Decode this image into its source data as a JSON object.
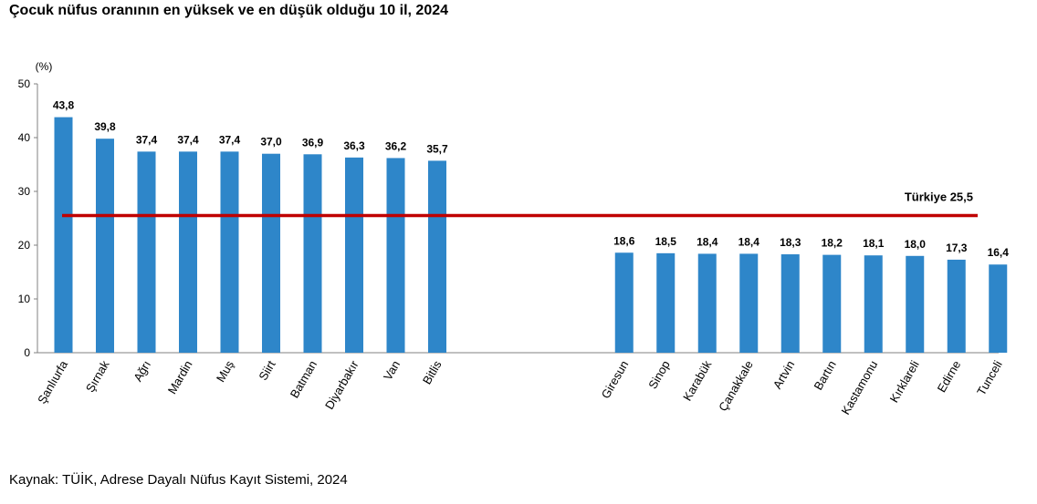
{
  "title": "Çocuk nüfus oranının en yüksek ve en düşük olduğu 10 il, 2024",
  "source": "Kaynak: TÜİK, Adrese Dayalı Nüfus Kayıt Sistemi, 2024",
  "chart_data": {
    "type": "bar",
    "ylabel": "(%)",
    "ylim": [
      0,
      50
    ],
    "yticks": [
      0,
      10,
      20,
      30,
      40,
      50
    ],
    "categories": [
      "Şanlıurfa",
      "Şırnak",
      "Ağrı",
      "Mardin",
      "Muş",
      "Siirt",
      "Batman",
      "Diyarbakır",
      "Van",
      "Bitlis",
      "Giresun",
      "Sinop",
      "Karabük",
      "Çanakkale",
      "Artvin",
      "Bartın",
      "Kastamonu",
      "Kırklareli",
      "Edirne",
      "Tunceli"
    ],
    "values": [
      43.8,
      39.8,
      37.4,
      37.4,
      37.4,
      37.0,
      36.9,
      36.3,
      36.2,
      35.7,
      18.6,
      18.5,
      18.4,
      18.4,
      18.3,
      18.2,
      18.1,
      18.0,
      17.3,
      16.4
    ],
    "value_labels": [
      "43,8",
      "39,8",
      "37,4",
      "37,4",
      "37,4",
      "37,0",
      "36,9",
      "36,3",
      "36,2",
      "35,7",
      "18,6",
      "18,5",
      "18,4",
      "18,4",
      "18,3",
      "18,2",
      "18,1",
      "18,0",
      "17,3",
      "16,4"
    ],
    "reference_line": {
      "label": "Türkiye",
      "value": 25.5,
      "value_label": "25,5",
      "color": "#C00000"
    },
    "bar_color": "#2E86C9",
    "grid": false
  }
}
